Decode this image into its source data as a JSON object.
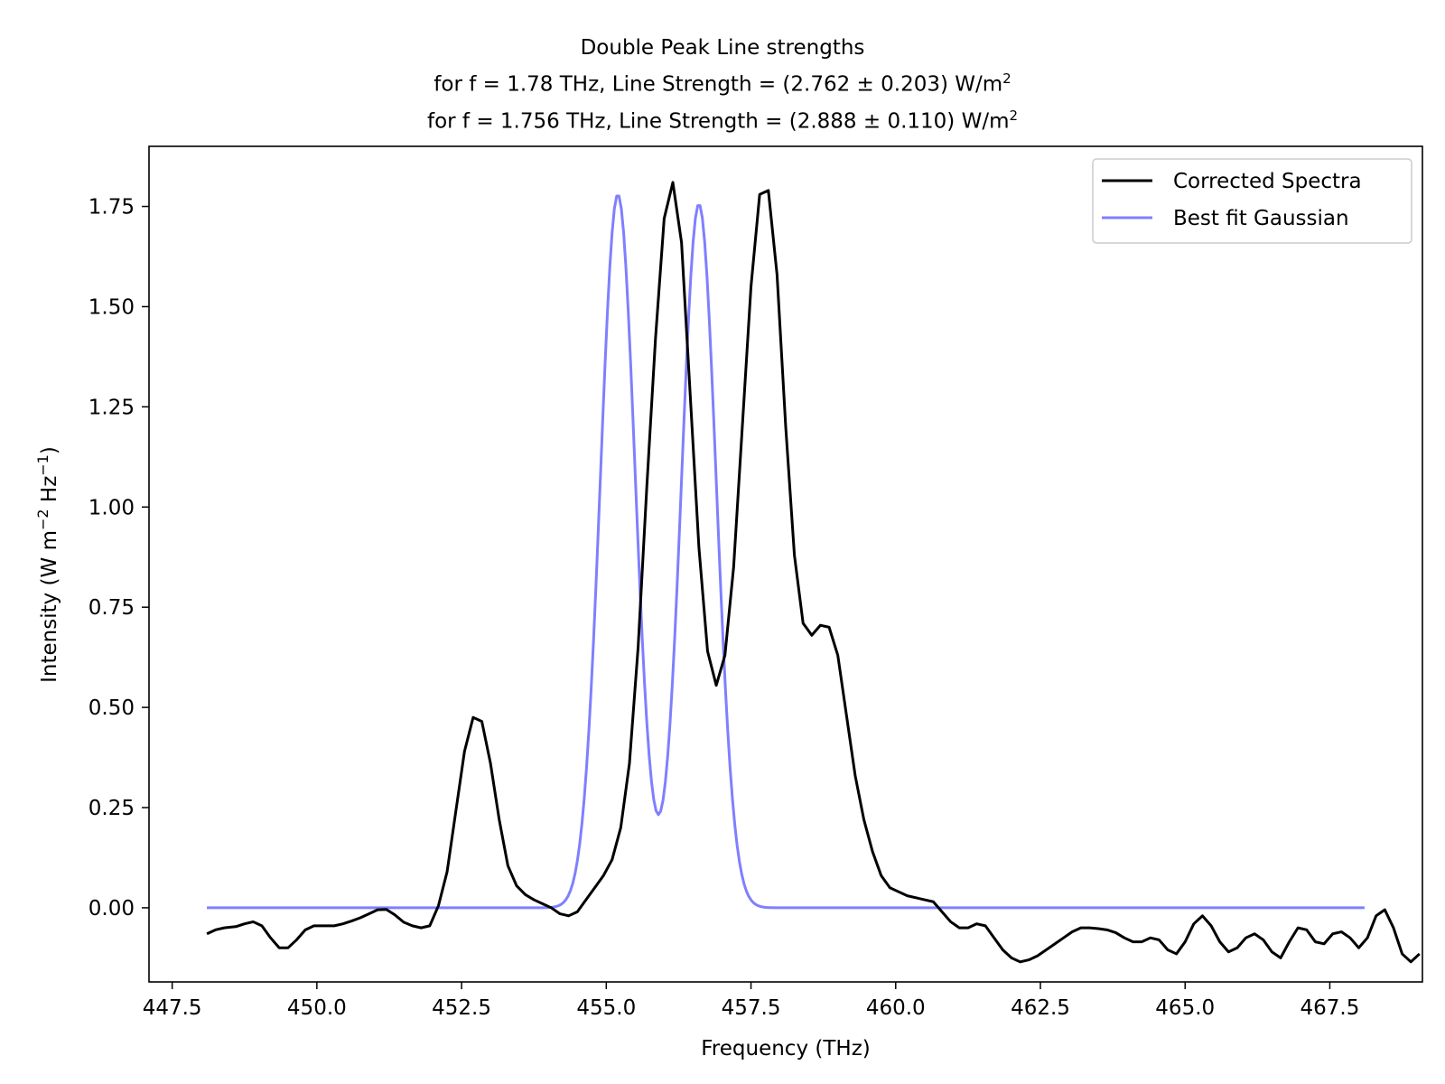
{
  "chart_data": {
    "type": "line",
    "title": "Double Peak Line strengths",
    "subtitle_lines": [
      {
        "prefix": "for f = 1.78 THz, Line Strength = (2.762 ± 0.203) W/m",
        "sup": "2"
      },
      {
        "prefix": "for f = 1.756 THz, Line Strength = (2.888 ± 0.110) W/m",
        "sup": "2"
      }
    ],
    "xlabel": "Frequency (THz)",
    "ylabel": {
      "p1": "Intensity (W m",
      "s1": "−2",
      "p2": " Hz",
      "s2": "−1",
      "p3": ")"
    },
    "xlim": [
      447.1,
      469.1
    ],
    "ylim": [
      -0.185,
      1.9
    ],
    "x_ticks": [
      "447.5",
      "450.0",
      "452.5",
      "455.0",
      "457.5",
      "460.0",
      "462.5",
      "465.0",
      "467.5"
    ],
    "y_ticks": [
      "0.00",
      "0.25",
      "0.50",
      "0.75",
      "1.00",
      "1.25",
      "1.50",
      "1.75"
    ],
    "grid": false,
    "legend_position": "top-right",
    "series": [
      {
        "name": "Corrected Spectra",
        "color": "#000000",
        "points": [
          [
            448.1,
            -0.065
          ],
          [
            448.25,
            -0.055
          ],
          [
            448.4,
            -0.05
          ],
          [
            448.6,
            -0.047
          ],
          [
            448.75,
            -0.04
          ],
          [
            448.9,
            -0.035
          ],
          [
            449.05,
            -0.045
          ],
          [
            449.2,
            -0.075
          ],
          [
            449.35,
            -0.1
          ],
          [
            449.5,
            -0.1
          ],
          [
            449.65,
            -0.08
          ],
          [
            449.8,
            -0.055
          ],
          [
            449.95,
            -0.045
          ],
          [
            450.1,
            -0.045
          ],
          [
            450.3,
            -0.045
          ],
          [
            450.45,
            -0.04
          ],
          [
            450.6,
            -0.033
          ],
          [
            450.75,
            -0.025
          ],
          [
            450.9,
            -0.015
          ],
          [
            451.05,
            -0.005
          ],
          [
            451.2,
            -0.004
          ],
          [
            451.35,
            -0.018
          ],
          [
            451.5,
            -0.036
          ],
          [
            451.65,
            -0.045
          ],
          [
            451.8,
            -0.05
          ],
          [
            451.95,
            -0.045
          ],
          [
            452.1,
            0.005
          ],
          [
            452.25,
            0.09
          ],
          [
            452.4,
            0.24
          ],
          [
            452.55,
            0.39
          ],
          [
            452.7,
            0.475
          ],
          [
            452.85,
            0.465
          ],
          [
            453.0,
            0.36
          ],
          [
            453.15,
            0.22
          ],
          [
            453.3,
            0.105
          ],
          [
            453.45,
            0.055
          ],
          [
            453.6,
            0.033
          ],
          [
            453.75,
            0.02
          ],
          [
            453.9,
            0.01
          ],
          [
            454.05,
            0.0
          ],
          [
            454.2,
            -0.015
          ],
          [
            454.35,
            -0.02
          ],
          [
            454.5,
            -0.01
          ],
          [
            454.65,
            0.02
          ],
          [
            454.8,
            0.05
          ],
          [
            454.95,
            0.08
          ],
          [
            455.1,
            0.12
          ],
          [
            455.25,
            0.2
          ],
          [
            455.4,
            0.36
          ],
          [
            455.55,
            0.65
          ],
          [
            455.7,
            1.05
          ],
          [
            455.85,
            1.42
          ],
          [
            456.0,
            1.72
          ],
          [
            456.15,
            1.81
          ],
          [
            456.3,
            1.66
          ],
          [
            456.45,
            1.28
          ],
          [
            456.6,
            0.9
          ],
          [
            456.75,
            0.64
          ],
          [
            456.9,
            0.555
          ],
          [
            457.05,
            0.63
          ],
          [
            457.2,
            0.85
          ],
          [
            457.35,
            1.2
          ],
          [
            457.5,
            1.55
          ],
          [
            457.65,
            1.78
          ],
          [
            457.8,
            1.79
          ],
          [
            457.95,
            1.58
          ],
          [
            458.1,
            1.2
          ],
          [
            458.25,
            0.88
          ],
          [
            458.4,
            0.71
          ],
          [
            458.55,
            0.68
          ],
          [
            458.7,
            0.705
          ],
          [
            458.85,
            0.7
          ],
          [
            459.0,
            0.63
          ],
          [
            459.15,
            0.48
          ],
          [
            459.3,
            0.33
          ],
          [
            459.45,
            0.22
          ],
          [
            459.6,
            0.14
          ],
          [
            459.75,
            0.08
          ],
          [
            459.9,
            0.05
          ],
          [
            460.05,
            0.04
          ],
          [
            460.2,
            0.03
          ],
          [
            460.35,
            0.025
          ],
          [
            460.5,
            0.02
          ],
          [
            460.65,
            0.015
          ],
          [
            460.8,
            -0.01
          ],
          [
            460.95,
            -0.035
          ],
          [
            461.1,
            -0.05
          ],
          [
            461.25,
            -0.05
          ],
          [
            461.4,
            -0.04
          ],
          [
            461.55,
            -0.045
          ],
          [
            461.7,
            -0.075
          ],
          [
            461.85,
            -0.105
          ],
          [
            462.0,
            -0.125
          ],
          [
            462.15,
            -0.135
          ],
          [
            462.3,
            -0.13
          ],
          [
            462.45,
            -0.12
          ],
          [
            462.6,
            -0.105
          ],
          [
            462.75,
            -0.09
          ],
          [
            462.9,
            -0.075
          ],
          [
            463.05,
            -0.06
          ],
          [
            463.2,
            -0.05
          ],
          [
            463.35,
            -0.05
          ],
          [
            463.5,
            -0.052
          ],
          [
            463.65,
            -0.055
          ],
          [
            463.8,
            -0.062
          ],
          [
            463.95,
            -0.075
          ],
          [
            464.1,
            -0.085
          ],
          [
            464.25,
            -0.085
          ],
          [
            464.4,
            -0.075
          ],
          [
            464.55,
            -0.08
          ],
          [
            464.7,
            -0.105
          ],
          [
            464.85,
            -0.115
          ],
          [
            465.0,
            -0.085
          ],
          [
            465.15,
            -0.04
          ],
          [
            465.3,
            -0.02
          ],
          [
            465.45,
            -0.045
          ],
          [
            465.6,
            -0.085
          ],
          [
            465.75,
            -0.11
          ],
          [
            465.9,
            -0.1
          ],
          [
            466.05,
            -0.075
          ],
          [
            466.2,
            -0.065
          ],
          [
            466.35,
            -0.08
          ],
          [
            466.5,
            -0.11
          ],
          [
            466.65,
            -0.125
          ],
          [
            466.8,
            -0.085
          ],
          [
            466.95,
            -0.05
          ],
          [
            467.1,
            -0.055
          ],
          [
            467.25,
            -0.085
          ],
          [
            467.4,
            -0.09
          ],
          [
            467.55,
            -0.065
          ],
          [
            467.7,
            -0.06
          ],
          [
            467.85,
            -0.075
          ],
          [
            468.0,
            -0.1
          ],
          [
            468.15,
            -0.075
          ],
          [
            468.3,
            -0.02
          ],
          [
            468.45,
            -0.005
          ],
          [
            468.6,
            -0.05
          ],
          [
            468.75,
            -0.115
          ],
          [
            468.9,
            -0.135
          ],
          [
            469.05,
            -0.115
          ]
        ]
      },
      {
        "name": "Best fit Gaussian",
        "color": "#7f7fff",
        "model": "double_gaussian",
        "x_range": [
          448.1,
          468.1
        ],
        "components": [
          {
            "amplitude": 1.78,
            "center": 455.2,
            "sigma": 0.3
          },
          {
            "amplitude": 1.756,
            "center": 456.6,
            "sigma": 0.3
          }
        ]
      }
    ]
  }
}
